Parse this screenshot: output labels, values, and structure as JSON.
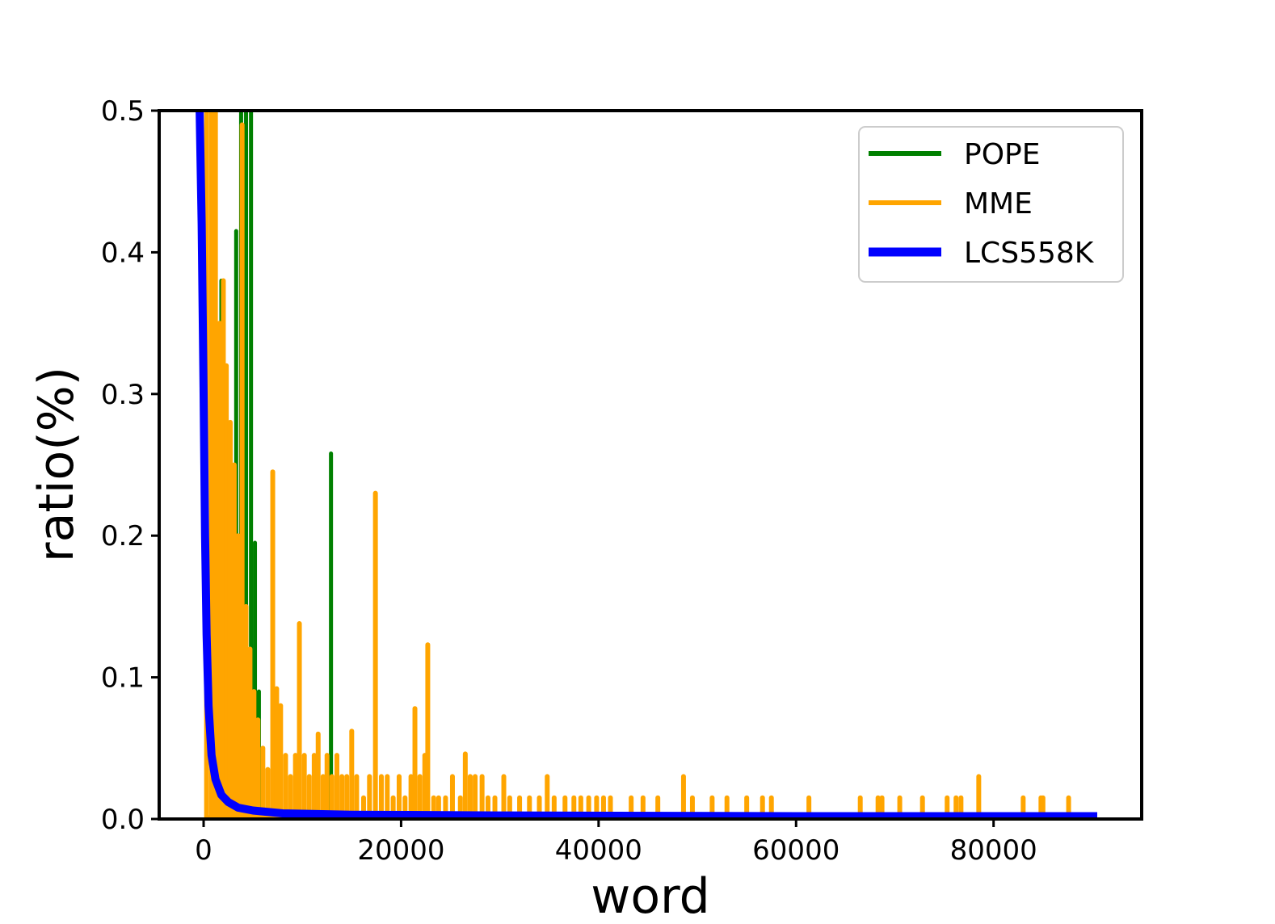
{
  "chart_data": {
    "type": "line",
    "title": "",
    "xlabel": "word",
    "ylabel": "ratio(%)",
    "xlim": [
      -4500,
      95000
    ],
    "ylim": [
      0,
      0.5
    ],
    "xticks": [
      0,
      20000,
      40000,
      60000,
      80000
    ],
    "xtick_labels": [
      "0",
      "20000",
      "40000",
      "60000",
      "80000"
    ],
    "yticks": [
      0.0,
      0.1,
      0.2,
      0.3,
      0.4,
      0.5
    ],
    "ytick_labels": [
      "0.0",
      "0.1",
      "0.2",
      "0.3",
      "0.4",
      "0.5"
    ],
    "grid": false,
    "legend_position": "top-right",
    "series": [
      {
        "name": "POPE",
        "color": "#008000",
        "style": "spikes",
        "points": [
          [
            1800,
            0.38
          ],
          [
            2500,
            0.27
          ],
          [
            3000,
            0.16
          ],
          [
            3300,
            0.415
          ],
          [
            3800,
            0.5
          ],
          [
            4300,
            0.5
          ],
          [
            4800,
            0.5
          ],
          [
            5200,
            0.195
          ],
          [
            5600,
            0.09
          ],
          [
            12900,
            0.258
          ]
        ]
      },
      {
        "name": "MME",
        "color": "#FFA500",
        "style": "spikes",
        "points": [
          [
            300,
            0.5
          ],
          [
            800,
            0.5
          ],
          [
            1200,
            0.5
          ],
          [
            1600,
            0.35
          ],
          [
            2000,
            0.38
          ],
          [
            2300,
            0.32
          ],
          [
            2700,
            0.28
          ],
          [
            3100,
            0.25
          ],
          [
            3500,
            0.2
          ],
          [
            3900,
            0.49
          ],
          [
            4300,
            0.15
          ],
          [
            4700,
            0.12
          ],
          [
            5100,
            0.09
          ],
          [
            5500,
            0.07
          ],
          [
            6000,
            0.05
          ],
          [
            6500,
            0.035
          ],
          [
            7000,
            0.245
          ],
          [
            7400,
            0.092
          ],
          [
            7800,
            0.08
          ],
          [
            8300,
            0.045
          ],
          [
            8800,
            0.03
          ],
          [
            9300,
            0.045
          ],
          [
            9700,
            0.138
          ],
          [
            10200,
            0.045
          ],
          [
            10700,
            0.03
          ],
          [
            11200,
            0.045
          ],
          [
            11600,
            0.06
          ],
          [
            12100,
            0.03
          ],
          [
            12500,
            0.045
          ],
          [
            13000,
            0.03
          ],
          [
            13500,
            0.045
          ],
          [
            14000,
            0.03
          ],
          [
            14500,
            0.03
          ],
          [
            15000,
            0.062
          ],
          [
            15500,
            0.03
          ],
          [
            16200,
            0.015
          ],
          [
            16800,
            0.03
          ],
          [
            17400,
            0.23
          ],
          [
            18000,
            0.03
          ],
          [
            18600,
            0.03
          ],
          [
            19200,
            0.015
          ],
          [
            19800,
            0.03
          ],
          [
            20400,
            0.015
          ],
          [
            21000,
            0.03
          ],
          [
            21400,
            0.078
          ],
          [
            21900,
            0.03
          ],
          [
            22400,
            0.045
          ],
          [
            22700,
            0.123
          ],
          [
            23300,
            0.015
          ],
          [
            23800,
            0.015
          ],
          [
            24500,
            0.015
          ],
          [
            25200,
            0.03
          ],
          [
            26000,
            0.015
          ],
          [
            26500,
            0.046
          ],
          [
            27000,
            0.03
          ],
          [
            27500,
            0.03
          ],
          [
            28200,
            0.03
          ],
          [
            28800,
            0.015
          ],
          [
            29500,
            0.015
          ],
          [
            30400,
            0.03
          ],
          [
            31000,
            0.015
          ],
          [
            32000,
            0.015
          ],
          [
            33000,
            0.015
          ],
          [
            34000,
            0.015
          ],
          [
            34800,
            0.03
          ],
          [
            35500,
            0.015
          ],
          [
            36600,
            0.015
          ],
          [
            37500,
            0.015
          ],
          [
            38200,
            0.015
          ],
          [
            39000,
            0.015
          ],
          [
            39800,
            0.015
          ],
          [
            40500,
            0.015
          ],
          [
            41200,
            0.015
          ],
          [
            43300,
            0.015
          ],
          [
            44500,
            0.015
          ],
          [
            46000,
            0.015
          ],
          [
            48600,
            0.03
          ],
          [
            49500,
            0.015
          ],
          [
            51500,
            0.015
          ],
          [
            53000,
            0.015
          ],
          [
            55000,
            0.015
          ],
          [
            56600,
            0.015
          ],
          [
            57500,
            0.015
          ],
          [
            61300,
            0.015
          ],
          [
            66500,
            0.015
          ],
          [
            68300,
            0.015
          ],
          [
            68700,
            0.015
          ],
          [
            70500,
            0.015
          ],
          [
            72800,
            0.015
          ],
          [
            75300,
            0.015
          ],
          [
            76200,
            0.015
          ],
          [
            76700,
            0.015
          ],
          [
            78500,
            0.03
          ],
          [
            83000,
            0.015
          ],
          [
            84800,
            0.015
          ],
          [
            85000,
            0.015
          ],
          [
            87600,
            0.015
          ]
        ]
      },
      {
        "name": "LCS558K",
        "color": "#0000FF",
        "style": "line",
        "points": [
          [
            -400,
            0.5
          ],
          [
            -200,
            0.42
          ],
          [
            0,
            0.3
          ],
          [
            150,
            0.2
          ],
          [
            300,
            0.13
          ],
          [
            500,
            0.08
          ],
          [
            800,
            0.045
          ],
          [
            1200,
            0.028
          ],
          [
            1800,
            0.017
          ],
          [
            2500,
            0.012
          ],
          [
            3500,
            0.008
          ],
          [
            5000,
            0.006
          ],
          [
            8000,
            0.004
          ],
          [
            15000,
            0.003
          ],
          [
            30000,
            0.0025
          ],
          [
            60000,
            0.002
          ],
          [
            90500,
            0.002
          ]
        ]
      }
    ]
  }
}
